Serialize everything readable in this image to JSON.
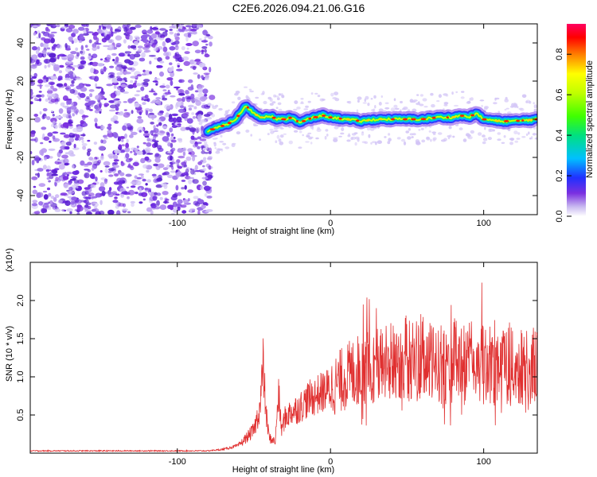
{
  "title": "C2E6.2026.094.21.06.G16",
  "chart_data": [
    {
      "type": "heatmap",
      "xlabel": "Height of straight line (km)",
      "ylabel": "Frequency (Hz)",
      "xlim": [
        -196,
        135
      ],
      "ylim": [
        -50,
        50
      ],
      "xticks": [
        -100,
        0,
        100
      ],
      "xtick_labels": [
        "-100",
        "0",
        "100"
      ],
      "yticks": [
        -40,
        -20,
        0,
        20,
        40
      ],
      "ytick_labels": [
        "-40",
        "-20",
        "0",
        "20",
        "40"
      ],
      "noise_region_x": [
        -196,
        -78
      ],
      "ridge": {
        "x": [
          -80,
          -72,
          -66,
          -62,
          -58,
          -55,
          -50,
          -45,
          -40,
          -35,
          -30,
          -25,
          -20,
          -15,
          -10,
          -5,
          0,
          10,
          20,
          30,
          40,
          50,
          60,
          70,
          80,
          85,
          90,
          95,
          100,
          110,
          120,
          135
        ],
        "y": [
          -6,
          -4,
          -2,
          0,
          4,
          7,
          3,
          1,
          2,
          0,
          0,
          1,
          -2,
          0,
          1,
          2,
          1,
          0,
          -1,
          0,
          0,
          0,
          0,
          1,
          1,
          2,
          1,
          3,
          0,
          -1,
          -1,
          0
        ]
      },
      "colorbar": {
        "label": "Normalized spectral amplitude",
        "ticks": [
          0.0,
          0.2,
          0.4,
          0.6,
          0.8
        ],
        "tick_labels": [
          "0.0",
          "0.2",
          "0.4",
          "0.6",
          "0.8"
        ],
        "range": [
          0,
          0.95
        ]
      }
    },
    {
      "type": "line",
      "xlabel": "Height of straight line (km)",
      "ylabel": "SNR (10 * v/v)",
      "y_multiplier": "(x10⁴)",
      "xlim": [
        -196,
        135
      ],
      "ylim": [
        0,
        25000
      ],
      "xticks": [
        -100,
        0,
        100
      ],
      "xtick_labels": [
        "-100",
        "0",
        "100"
      ],
      "yticks": [
        5000,
        10000,
        15000,
        20000
      ],
      "ytick_labels": [
        "0.5",
        "1.0",
        "1.5",
        "2.0"
      ],
      "series": [
        {
          "color": "#e03030",
          "x": [
            -196,
            -80,
            -70,
            -60,
            -55,
            -50,
            -46,
            -44,
            -42,
            -40,
            -36,
            -34,
            -32,
            -30,
            -28,
            -25,
            -20,
            -15,
            -10,
            -5,
            0,
            10,
            20,
            30,
            40,
            50,
            60,
            70,
            80,
            90,
            100,
            110,
            120,
            135
          ],
          "y": [
            300,
            300,
            500,
            1000,
            2000,
            3000,
            6000,
            11500,
            5000,
            2000,
            1500,
            8000,
            3000,
            4500,
            5000,
            5500,
            6000,
            7000,
            7500,
            8000,
            8500,
            10000,
            11000,
            11500,
            12000,
            12500,
            12000,
            11500,
            12000,
            12000,
            11500,
            12000,
            11000,
            11500
          ]
        }
      ]
    }
  ]
}
